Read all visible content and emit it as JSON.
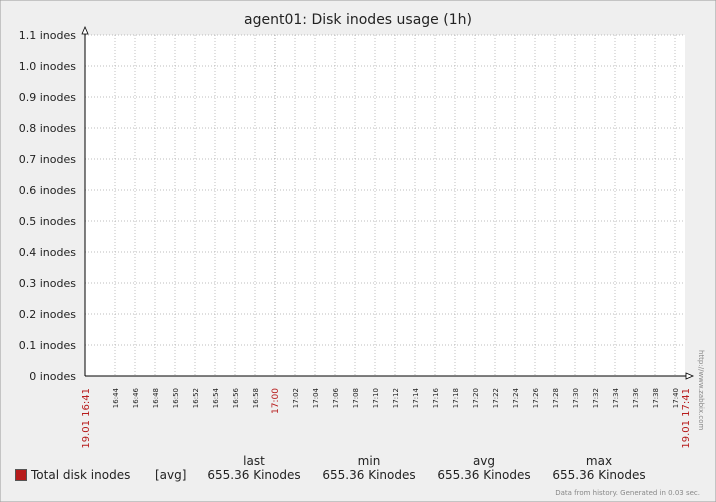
{
  "chart_data": {
    "type": "line",
    "title": "agent01: Disk inodes usage (1h)",
    "ylim": [
      0,
      1.1
    ],
    "y_ticks": [
      "0 inodes",
      "0.1 inodes",
      "0.2 inodes",
      "0.3 inodes",
      "0.4 inodes",
      "0.5 inodes",
      "0.6 inodes",
      "0.7 inodes",
      "0.8 inodes",
      "0.9 inodes",
      "1.0 inodes",
      "1.1 inodes"
    ],
    "x_range": [
      "19.01 16:41",
      "19.01 17:41"
    ],
    "x_ticks": [
      "16:44",
      "16:46",
      "16:48",
      "16:50",
      "16:52",
      "16:54",
      "16:56",
      "16:58",
      "17:00",
      "17:02",
      "17:04",
      "17:06",
      "17:08",
      "17:10",
      "17:12",
      "17:14",
      "17:16",
      "17:18",
      "17:20",
      "17:22",
      "17:24",
      "17:26",
      "17:28",
      "17:30",
      "17:32",
      "17:34",
      "17:36",
      "17:38",
      "17:40"
    ],
    "x_highlight": [
      "17:00"
    ],
    "grid": true,
    "series": [
      {
        "name": "Total disk inodes",
        "color": "#b71c1c",
        "values": []
      }
    ]
  },
  "legend": {
    "item_label": "Total disk inodes",
    "func": "[avg]",
    "headers": {
      "last": "last",
      "min": "min",
      "avg": "avg",
      "max": "max"
    },
    "values": {
      "last": "655.36 Kinodes",
      "min": "655.36 Kinodes",
      "avg": "655.36 Kinodes",
      "max": "655.36 Kinodes"
    }
  },
  "footer": "Data from history. Generated in 0.03 sec.",
  "side_link": "http://www.zabbix.com"
}
